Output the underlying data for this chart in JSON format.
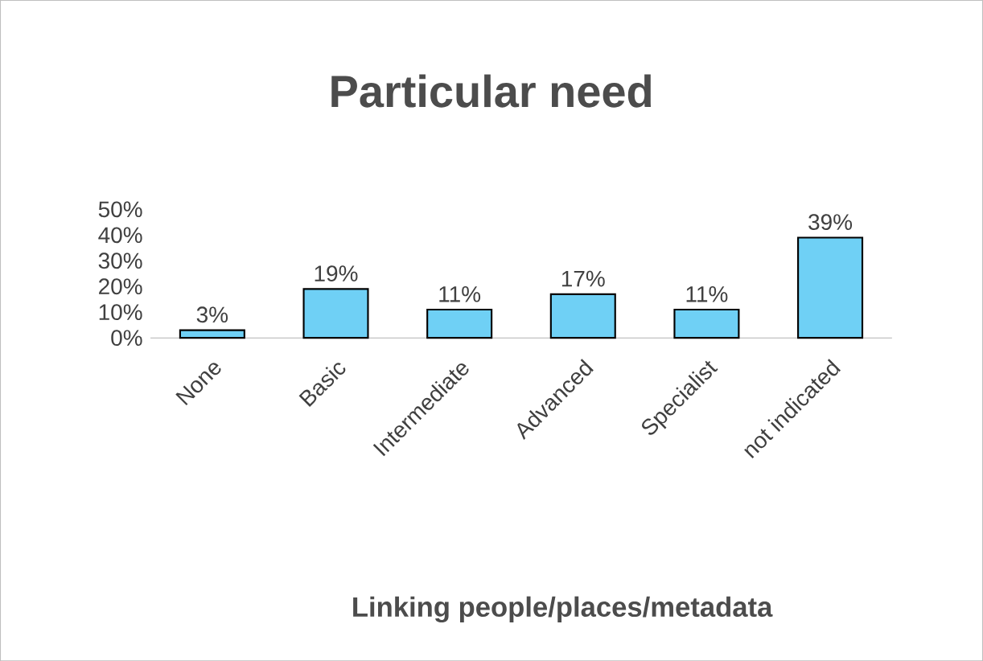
{
  "chart_data": {
    "type": "bar",
    "title": "Particular need",
    "xlabel": "Linking people/places/metadata",
    "categories": [
      "None",
      "Basic",
      "Intermediate",
      "Advanced",
      "Specialist",
      "not indicated"
    ],
    "values": [
      3,
      19,
      11,
      17,
      11,
      39
    ],
    "value_labels": [
      "3%",
      "19%",
      "11%",
      "17%",
      "11%",
      "39%"
    ],
    "color": "#6fd0f5",
    "ylim": [
      0,
      50
    ],
    "yticks": [
      {
        "value": 0,
        "label": "0%"
      },
      {
        "value": 10,
        "label": "10%"
      },
      {
        "value": 20,
        "label": "20%"
      },
      {
        "value": 30,
        "label": "30%"
      },
      {
        "value": 40,
        "label": "40%"
      },
      {
        "value": 50,
        "label": "50%"
      }
    ],
    "grid": false
  }
}
